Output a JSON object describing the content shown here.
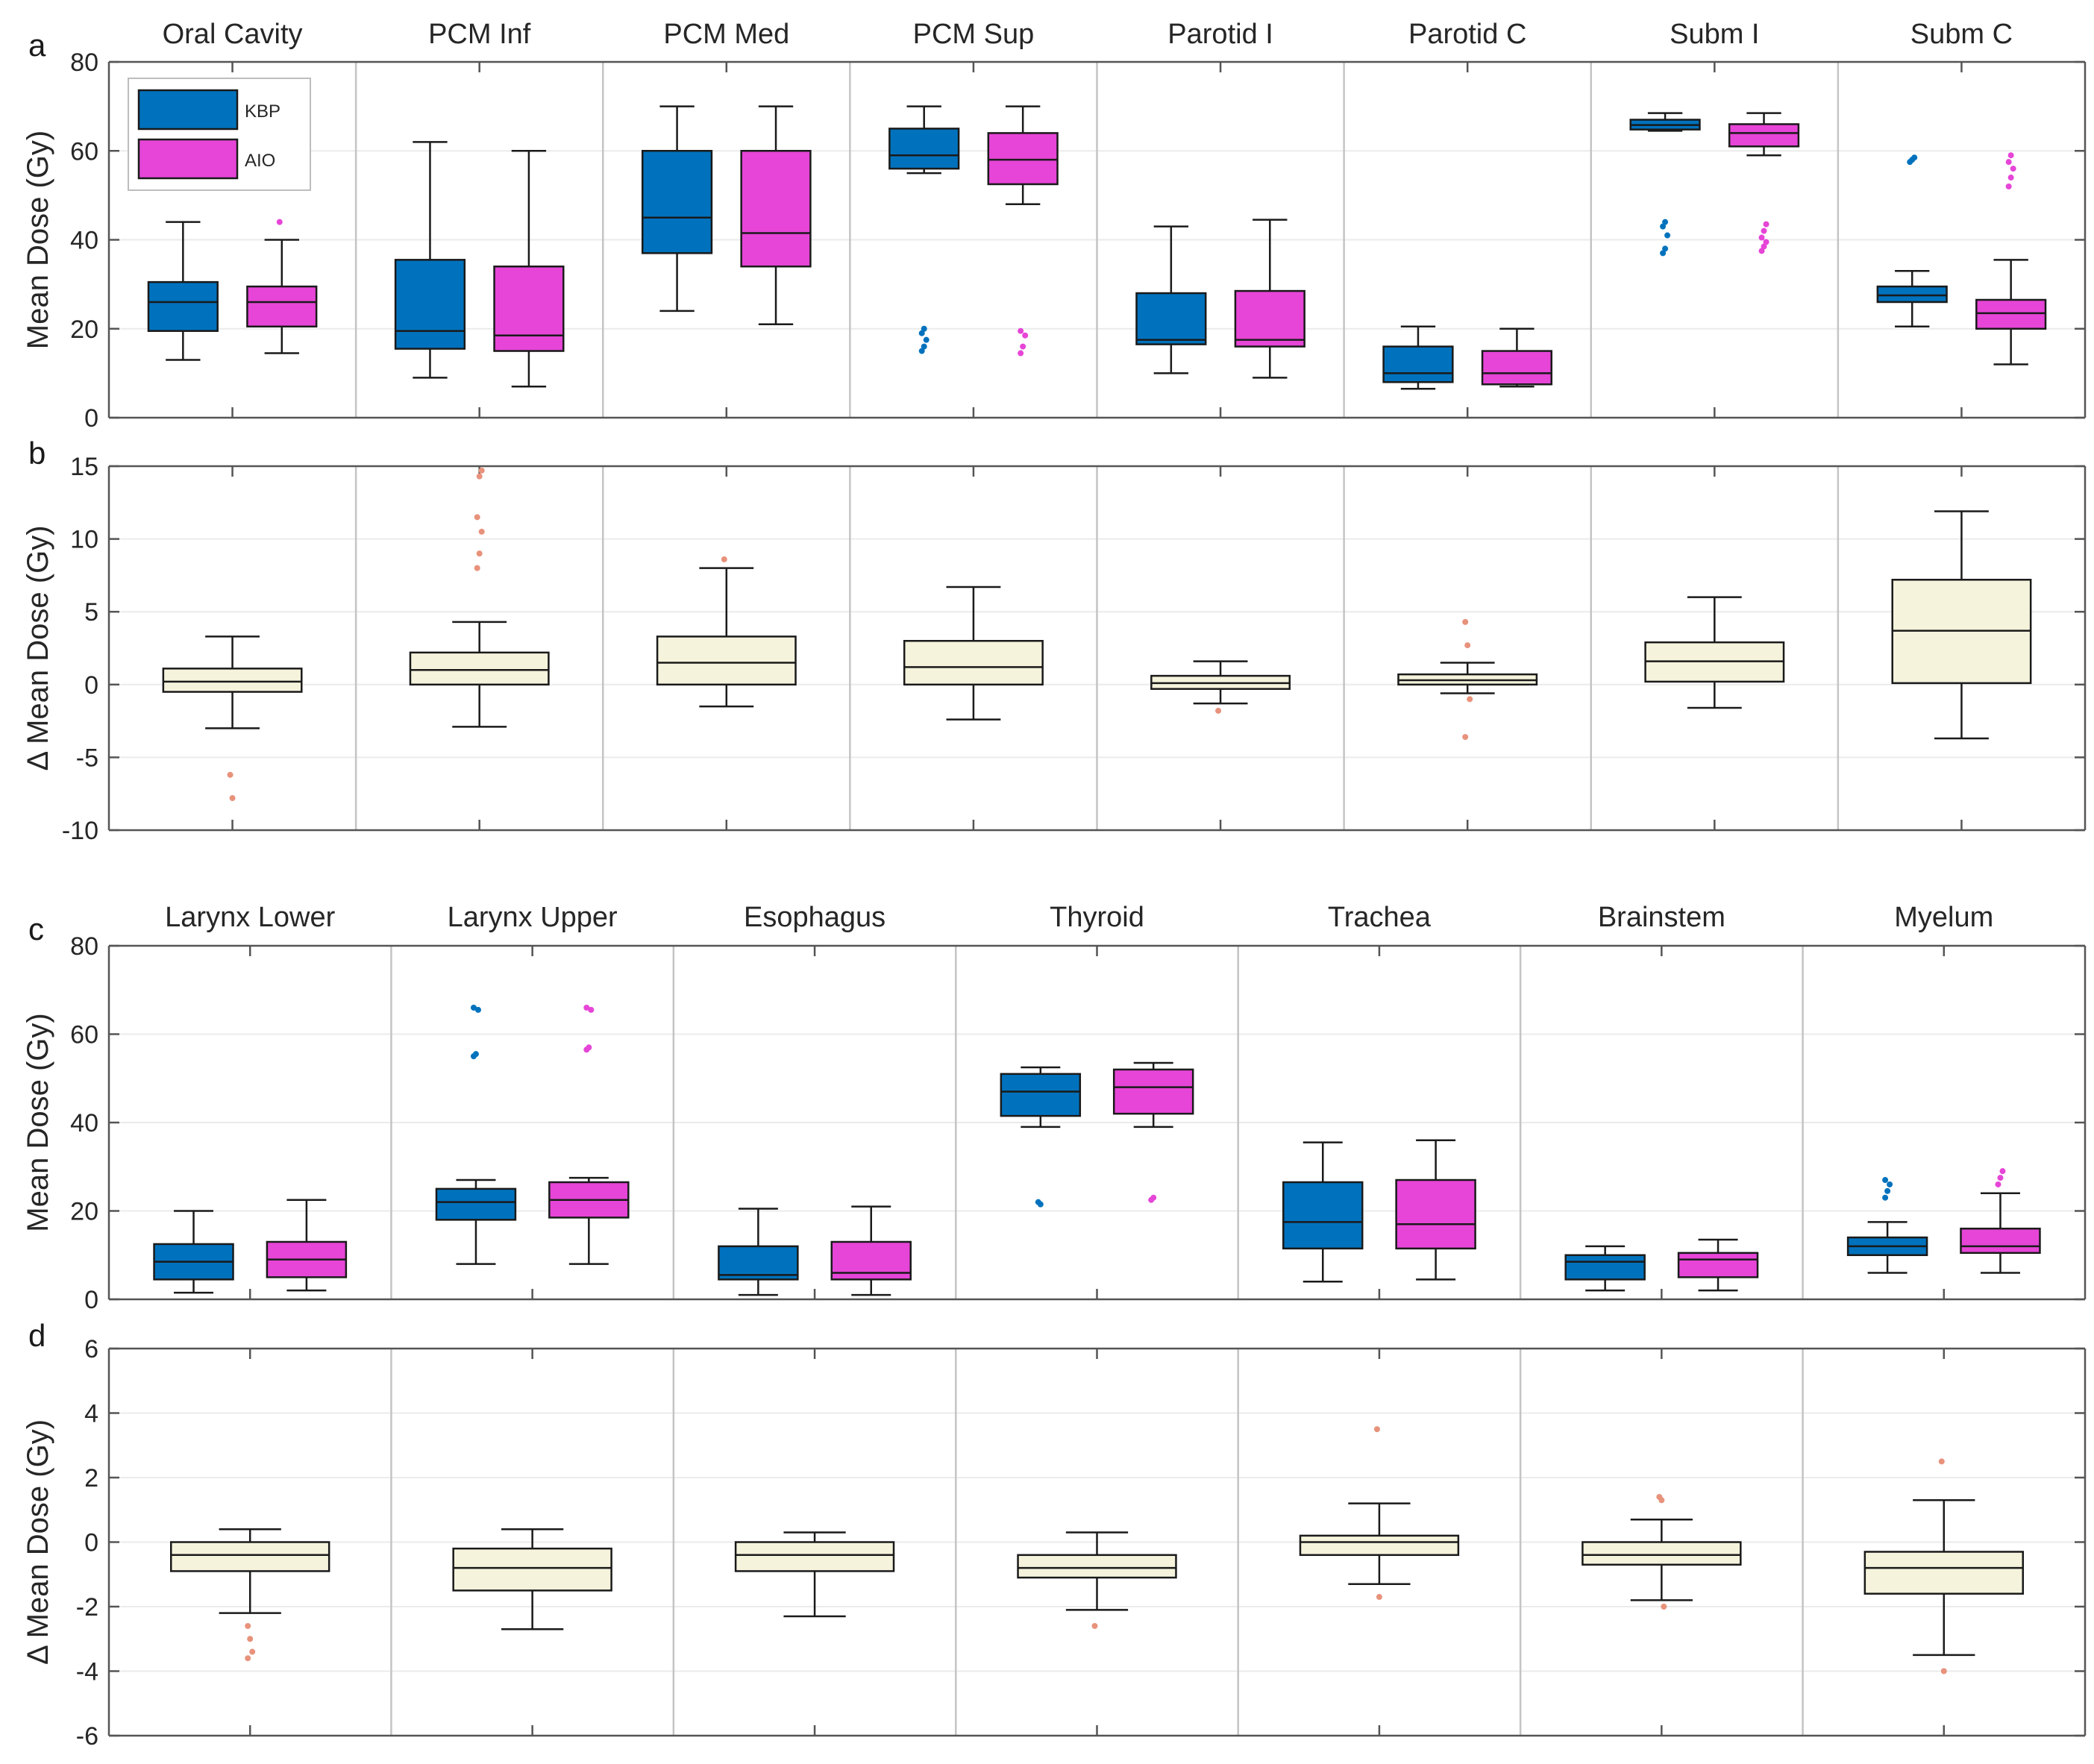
{
  "chart_data": [
    {
      "panel": "a",
      "type": "boxplot",
      "ylabel": "Mean Dose (Gy)",
      "ylim": [
        0,
        80
      ],
      "yticks": [
        0,
        20,
        40,
        60,
        80
      ],
      "legend": {
        "position": "top-left",
        "entries": [
          {
            "name": "KBP",
            "color": "#0072BD"
          },
          {
            "name": "AIO",
            "color": "#E645D7"
          }
        ]
      },
      "categories": [
        "Oral Cavity",
        "PCM Inf",
        "PCM Med",
        "PCM Sup",
        "Parotid I",
        "Parotid C",
        "Subm I",
        "Subm C"
      ],
      "series": [
        {
          "name": "KBP",
          "color": "#0072BD",
          "boxes": [
            {
              "whislo": 13,
              "q1": 19.5,
              "med": 26,
              "q3": 30.5,
              "whishi": 44,
              "fliers": []
            },
            {
              "whislo": 9,
              "q1": 15.5,
              "med": 19.5,
              "q3": 35.5,
              "whishi": 62,
              "fliers": []
            },
            {
              "whislo": 24,
              "q1": 37,
              "med": 45,
              "q3": 60,
              "whishi": 70,
              "fliers": []
            },
            {
              "whislo": 55,
              "q1": 56,
              "med": 59,
              "q3": 65,
              "whishi": 70,
              "fliers": [
                15,
                16,
                17.5,
                19,
                20
              ]
            },
            {
              "whislo": 10,
              "q1": 16.5,
              "med": 17.5,
              "q3": 28,
              "whishi": 43,
              "fliers": []
            },
            {
              "whislo": 6.5,
              "q1": 8,
              "med": 10,
              "q3": 16,
              "whishi": 20.5,
              "fliers": []
            },
            {
              "whislo": 64.5,
              "q1": 64.8,
              "med": 65.8,
              "q3": 67,
              "whishi": 68.5,
              "fliers": [
                37,
                38,
                41,
                43,
                44
              ]
            },
            {
              "whislo": 20.5,
              "q1": 26,
              "med": 27.5,
              "q3": 29.5,
              "whishi": 33,
              "fliers": [
                57.5,
                58,
                58.5
              ]
            }
          ]
        },
        {
          "name": "AIO",
          "color": "#E645D7",
          "boxes": [
            {
              "whislo": 14.5,
              "q1": 20.5,
              "med": 26,
              "q3": 29.5,
              "whishi": 40,
              "fliers": [
                44
              ]
            },
            {
              "whislo": 7,
              "q1": 15,
              "med": 18.5,
              "q3": 34,
              "whishi": 60,
              "fliers": []
            },
            {
              "whislo": 21,
              "q1": 34,
              "med": 41.5,
              "q3": 60,
              "whishi": 70,
              "fliers": []
            },
            {
              "whislo": 48,
              "q1": 52.5,
              "med": 58,
              "q3": 64,
              "whishi": 70,
              "fliers": [
                14.5,
                16,
                18.5,
                19.5
              ]
            },
            {
              "whislo": 9,
              "q1": 16,
              "med": 17.5,
              "q3": 28.5,
              "whishi": 44.5,
              "fliers": []
            },
            {
              "whislo": 7,
              "q1": 7.5,
              "med": 10,
              "q3": 15,
              "whishi": 20,
              "fliers": []
            },
            {
              "whislo": 59,
              "q1": 61,
              "med": 64,
              "q3": 66,
              "whishi": 68.5,
              "fliers": [
                37.5,
                38.5,
                39.5,
                40.5,
                42,
                43.5
              ]
            },
            {
              "whislo": 12,
              "q1": 20,
              "med": 23.5,
              "q3": 26.5,
              "whishi": 35.5,
              "fliers": [
                52,
                54,
                56,
                57.5,
                59
              ]
            }
          ]
        }
      ]
    },
    {
      "panel": "b",
      "type": "boxplot",
      "ylabel": "Δ Mean Dose (Gy)",
      "ylim": [
        -10,
        15
      ],
      "yticks": [
        -10,
        -5,
        0,
        5,
        10,
        15
      ],
      "categories": [
        "Oral Cavity",
        "PCM Inf",
        "PCM Med",
        "PCM Sup",
        "Parotid I",
        "Parotid C",
        "Subm I",
        "Subm C"
      ],
      "series": [
        {
          "name": "Δ",
          "color": "#F5F3DC",
          "flier_color": "#E8927C",
          "boxes": [
            {
              "whislo": -3,
              "q1": -0.5,
              "med": 0.2,
              "q3": 1.1,
              "whishi": 3.3,
              "fliers": [
                -6.2,
                -7.8
              ]
            },
            {
              "whislo": -2.9,
              "q1": 0,
              "med": 1,
              "q3": 2.2,
              "whishi": 4.3,
              "fliers": [
                8,
                9,
                10.5,
                11.5,
                14.3,
                14.7
              ]
            },
            {
              "whislo": -1.5,
              "q1": 0,
              "med": 1.5,
              "q3": 3.3,
              "whishi": 8,
              "fliers": [
                8.6
              ]
            },
            {
              "whislo": -2.4,
              "q1": 0,
              "med": 1.2,
              "q3": 3,
              "whishi": 6.7,
              "fliers": []
            },
            {
              "whislo": -1.3,
              "q1": -0.3,
              "med": 0.1,
              "q3": 0.6,
              "whishi": 1.6,
              "fliers": [
                -1.8
              ]
            },
            {
              "whislo": -0.6,
              "q1": 0,
              "med": 0.3,
              "q3": 0.7,
              "whishi": 1.5,
              "fliers": [
                4.3,
                2.7,
                -1,
                -3.6
              ]
            },
            {
              "whislo": -1.6,
              "q1": 0.2,
              "med": 1.6,
              "q3": 2.9,
              "whishi": 6,
              "fliers": []
            },
            {
              "whislo": -3.7,
              "q1": 0.1,
              "med": 3.7,
              "q3": 7.2,
              "whishi": 11.9,
              "fliers": []
            }
          ]
        }
      ]
    },
    {
      "panel": "c",
      "type": "boxplot",
      "ylabel": "Mean Dose (Gy)",
      "ylim": [
        0,
        80
      ],
      "yticks": [
        0,
        20,
        40,
        60,
        80
      ],
      "categories": [
        "Larynx Lower",
        "Larynx Upper",
        "Esophagus",
        "Thyroid",
        "Trachea",
        "Brainstem",
        "Myelum"
      ],
      "series": [
        {
          "name": "KBP",
          "color": "#0072BD",
          "boxes": [
            {
              "whislo": 1.5,
              "q1": 4.5,
              "med": 8.5,
              "q3": 12.5,
              "whishi": 20,
              "fliers": []
            },
            {
              "whislo": 8,
              "q1": 18,
              "med": 22,
              "q3": 25,
              "whishi": 27,
              "fliers": [
                55,
                55.5,
                65.5,
                66
              ]
            },
            {
              "whislo": 1,
              "q1": 4.5,
              "med": 5.5,
              "q3": 12,
              "whishi": 20.5,
              "fliers": []
            },
            {
              "whislo": 39,
              "q1": 41.5,
              "med": 47,
              "q3": 51,
              "whishi": 52.5,
              "fliers": [
                22,
                21.5
              ]
            },
            {
              "whislo": 4,
              "q1": 11.5,
              "med": 17.5,
              "q3": 26.5,
              "whishi": 35.5,
              "fliers": []
            },
            {
              "whislo": 2,
              "q1": 4.5,
              "med": 8.5,
              "q3": 10,
              "whishi": 12,
              "fliers": []
            },
            {
              "whislo": 6,
              "q1": 10,
              "med": 12,
              "q3": 14,
              "whishi": 17.5,
              "fliers": [
                23,
                24.5,
                26,
                27
              ]
            }
          ]
        },
        {
          "name": "AIO",
          "color": "#E645D7",
          "boxes": [
            {
              "whislo": 2,
              "q1": 5,
              "med": 9,
              "q3": 13,
              "whishi": 22.5,
              "fliers": []
            },
            {
              "whislo": 8,
              "q1": 18.5,
              "med": 22.5,
              "q3": 26.5,
              "whishi": 27.5,
              "fliers": [
                56.5,
                57,
                65.5,
                66
              ]
            },
            {
              "whislo": 1,
              "q1": 4.5,
              "med": 6,
              "q3": 13,
              "whishi": 21,
              "fliers": []
            },
            {
              "whislo": 39,
              "q1": 42,
              "med": 48,
              "q3": 52,
              "whishi": 53.5,
              "fliers": [
                22.5,
                23
              ]
            },
            {
              "whislo": 4.5,
              "q1": 11.5,
              "med": 17,
              "q3": 27,
              "whishi": 36,
              "fliers": []
            },
            {
              "whislo": 2,
              "q1": 5,
              "med": 9,
              "q3": 10.5,
              "whishi": 13.5,
              "fliers": []
            },
            {
              "whislo": 6,
              "q1": 10.5,
              "med": 12,
              "q3": 16,
              "whishi": 24,
              "fliers": [
                26,
                27.5,
                29
              ]
            }
          ]
        }
      ]
    },
    {
      "panel": "d",
      "type": "boxplot",
      "ylabel": "Δ Mean Dose (Gy)",
      "ylim": [
        -6,
        6
      ],
      "yticks": [
        -6,
        -4,
        -2,
        0,
        2,
        4,
        6
      ],
      "categories": [
        "Larynx Lower",
        "Larynx Upper",
        "Esophagus",
        "Thyroid",
        "Trachea",
        "Brainstem",
        "Myelum"
      ],
      "series": [
        {
          "name": "Δ",
          "color": "#F5F3DC",
          "flier_color": "#E8927C",
          "boxes": [
            {
              "whislo": -2.2,
              "q1": -0.9,
              "med": -0.4,
              "q3": 0,
              "whishi": 0.4,
              "fliers": [
                -2.6,
                -3,
                -3.4,
                -3.6
              ]
            },
            {
              "whislo": -2.7,
              "q1": -1.5,
              "med": -0.8,
              "q3": -0.2,
              "whishi": 0.4,
              "fliers": []
            },
            {
              "whislo": -2.3,
              "q1": -0.9,
              "med": -0.4,
              "q3": 0,
              "whishi": 0.3,
              "fliers": []
            },
            {
              "whislo": -2.1,
              "q1": -1.1,
              "med": -0.8,
              "q3": -0.4,
              "whishi": 0.3,
              "fliers": [
                -2.6
              ]
            },
            {
              "whislo": -1.3,
              "q1": -0.4,
              "med": 0,
              "q3": 0.2,
              "whishi": 1.2,
              "fliers": [
                3.5,
                -1.7
              ]
            },
            {
              "whislo": -1.8,
              "q1": -0.7,
              "med": -0.4,
              "q3": 0,
              "whishi": 0.7,
              "fliers": [
                1.4,
                1.3,
                -2
              ]
            },
            {
              "whislo": -3.5,
              "q1": -1.6,
              "med": -0.8,
              "q3": -0.3,
              "whishi": 1.3,
              "fliers": [
                2.5,
                -4
              ]
            }
          ]
        }
      ]
    }
  ]
}
